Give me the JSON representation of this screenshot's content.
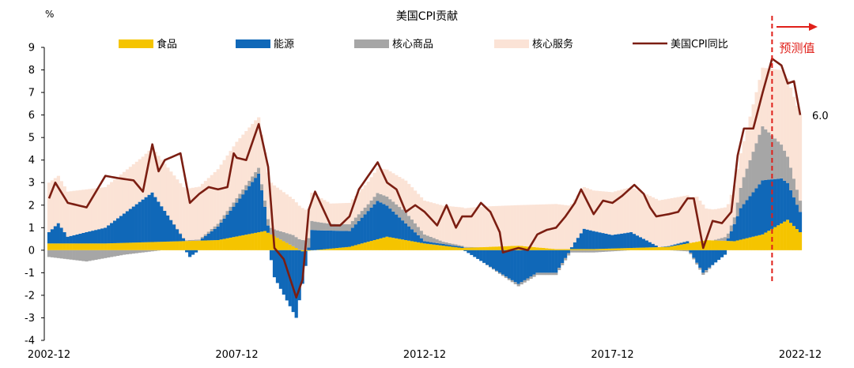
{
  "chart_data": {
    "type": "bar",
    "title": "美国CPI贡献",
    "ylabel": "%",
    "ylim": [
      -4,
      9
    ],
    "yticks": [
      -4,
      -3,
      -2,
      -1,
      0,
      1,
      2,
      3,
      4,
      5,
      6,
      7,
      8,
      9
    ],
    "x_tick_labels": [
      "2002-12",
      "2007-12",
      "2012-12",
      "2017-12",
      "2022-12"
    ],
    "x_start": "2002-12",
    "x_end": "2022-12",
    "legend_position": "top",
    "grid": false,
    "legend": [
      {
        "name": "食品",
        "kind": "bar",
        "color": "#f5c400"
      },
      {
        "name": "能源",
        "kind": "bar",
        "color": "#1068b8"
      },
      {
        "name": "核心商品",
        "kind": "bar",
        "color": "#a6a6a6"
      },
      {
        "name": "核心服务",
        "kind": "bar",
        "color": "#fbe3d6"
      },
      {
        "name": "美国CPI同比",
        "kind": "line",
        "color": "#7b1e12"
      }
    ],
    "anchors": {
      "food": [
        [
          "2002-12",
          0.3
        ],
        [
          "2004-06",
          0.3
        ],
        [
          "2007-06",
          0.45
        ],
        [
          "2008-09",
          0.85
        ],
        [
          "2009-09",
          -0.05
        ],
        [
          "2010-12",
          0.15
        ],
        [
          "2011-12",
          0.6
        ],
        [
          "2012-12",
          0.3
        ],
        [
          "2013-12",
          0.1
        ],
        [
          "2015-06",
          0.2
        ],
        [
          "2016-06",
          0.05
        ],
        [
          "2017-06",
          0.05
        ],
        [
          "2019-06",
          0.15
        ],
        [
          "2020-06",
          0.45
        ],
        [
          "2021-03",
          0.4
        ],
        [
          "2021-12",
          0.7
        ],
        [
          "2022-08",
          1.35
        ],
        [
          "2022-12",
          0.8
        ]
      ],
      "energy": [
        [
          "2002-12",
          0.5
        ],
        [
          "2003-03",
          0.9
        ],
        [
          "2003-06",
          0.3
        ],
        [
          "2004-06",
          0.7
        ],
        [
          "2005-09",
          2.2
        ],
        [
          "2006-09",
          -0.3
        ],
        [
          "2007-06",
          0.6
        ],
        [
          "2007-12",
          1.5
        ],
        [
          "2008-07",
          2.6
        ],
        [
          "2008-12",
          -1.2
        ],
        [
          "2009-07",
          -3.0
        ],
        [
          "2009-12",
          0.9
        ],
        [
          "2010-12",
          0.7
        ],
        [
          "2011-09",
          1.7
        ],
        [
          "2012-12",
          0.1
        ],
        [
          "2013-12",
          0.05
        ],
        [
          "2014-12",
          -1.0
        ],
        [
          "2015-06",
          -1.5
        ],
        [
          "2015-12",
          -1.0
        ],
        [
          "2016-06",
          -1.0
        ],
        [
          "2016-12",
          0.3
        ],
        [
          "2017-03",
          0.9
        ],
        [
          "2017-12",
          0.6
        ],
        [
          "2018-06",
          0.7
        ],
        [
          "2019-03",
          0.0
        ],
        [
          "2019-12",
          0.1
        ],
        [
          "2020-05",
          -1.0
        ],
        [
          "2020-12",
          -0.2
        ],
        [
          "2021-05",
          1.4
        ],
        [
          "2021-12",
          2.4
        ],
        [
          "2022-06",
          2.0
        ],
        [
          "2022-12",
          0.9
        ]
      ],
      "core_goods": [
        [
          "2002-12",
          -0.3
        ],
        [
          "2003-12",
          -0.5
        ],
        [
          "2004-12",
          -0.2
        ],
        [
          "2005-12",
          0.0
        ],
        [
          "2006-12",
          0.05
        ],
        [
          "2007-12",
          0.2
        ],
        [
          "2008-12",
          0.3
        ],
        [
          "2009-06",
          0.5
        ],
        [
          "2010-06",
          0.3
        ],
        [
          "2011-06",
          0.3
        ],
        [
          "2012-06",
          0.5
        ],
        [
          "2013-06",
          0.1
        ],
        [
          "2014-06",
          0.0
        ],
        [
          "2015-06",
          -0.1
        ],
        [
          "2016-06",
          -0.1
        ],
        [
          "2017-06",
          -0.1
        ],
        [
          "2018-06",
          0.0
        ],
        [
          "2019-06",
          0.0
        ],
        [
          "2020-06",
          -0.1
        ],
        [
          "2021-03",
          0.3
        ],
        [
          "2021-06",
          1.2
        ],
        [
          "2021-12",
          2.4
        ],
        [
          "2022-06",
          1.5
        ],
        [
          "2022-12",
          0.5
        ]
      ],
      "core_services": [
        [
          "2002-12",
          2.2
        ],
        [
          "2003-06",
          2.0
        ],
        [
          "2004-06",
          1.8
        ],
        [
          "2005-06",
          1.9
        ],
        [
          "2006-09",
          2.3
        ],
        [
          "2007-12",
          2.5
        ],
        [
          "2008-06",
          2.3
        ],
        [
          "2009-06",
          1.6
        ],
        [
          "2010-06",
          0.9
        ],
        [
          "2011-06",
          1.0
        ],
        [
          "2012-06",
          1.4
        ],
        [
          "2013-06",
          1.6
        ],
        [
          "2014-06",
          1.8
        ],
        [
          "2015-06",
          1.8
        ],
        [
          "2016-06",
          2.0
        ],
        [
          "2017-06",
          1.8
        ],
        [
          "2018-06",
          2.0
        ],
        [
          "2019-06",
          2.1
        ],
        [
          "2020-03",
          2.0
        ],
        [
          "2020-06",
          1.4
        ],
        [
          "2021-01",
          1.3
        ],
        [
          "2021-06",
          1.6
        ],
        [
          "2021-12",
          2.6
        ],
        [
          "2022-06",
          3.3
        ],
        [
          "2022-12",
          3.8
        ]
      ],
      "cpi_yoy": [
        [
          "2002-12",
          2.3
        ],
        [
          "2003-02",
          3.0
        ],
        [
          "2003-06",
          2.1
        ],
        [
          "2003-12",
          1.9
        ],
        [
          "2004-06",
          3.3
        ],
        [
          "2004-10",
          3.2
        ],
        [
          "2005-03",
          3.1
        ],
        [
          "2005-06",
          2.6
        ],
        [
          "2005-09",
          4.7
        ],
        [
          "2005-11",
          3.5
        ],
        [
          "2006-01",
          4.0
        ],
        [
          "2006-06",
          4.3
        ],
        [
          "2006-09",
          2.1
        ],
        [
          "2006-12",
          2.5
        ],
        [
          "2007-03",
          2.8
        ],
        [
          "2007-06",
          2.7
        ],
        [
          "2007-09",
          2.8
        ],
        [
          "2007-11",
          4.3
        ],
        [
          "2007-12",
          4.1
        ],
        [
          "2008-03",
          4.0
        ],
        [
          "2008-07",
          5.6
        ],
        [
          "2008-10",
          3.7
        ],
        [
          "2008-12",
          0.1
        ],
        [
          "2009-03",
          -0.4
        ],
        [
          "2009-07",
          -2.1
        ],
        [
          "2009-09",
          -1.3
        ],
        [
          "2009-11",
          1.8
        ],
        [
          "2010-01",
          2.6
        ],
        [
          "2010-06",
          1.1
        ],
        [
          "2010-09",
          1.1
        ],
        [
          "2010-12",
          1.5
        ],
        [
          "2011-03",
          2.7
        ],
        [
          "2011-09",
          3.9
        ],
        [
          "2011-12",
          3.0
        ],
        [
          "2012-03",
          2.7
        ],
        [
          "2012-06",
          1.7
        ],
        [
          "2012-09",
          2.0
        ],
        [
          "2012-12",
          1.7
        ],
        [
          "2013-04",
          1.1
        ],
        [
          "2013-07",
          2.0
        ],
        [
          "2013-10",
          1.0
        ],
        [
          "2013-12",
          1.5
        ],
        [
          "2014-03",
          1.5
        ],
        [
          "2014-06",
          2.1
        ],
        [
          "2014-09",
          1.7
        ],
        [
          "2014-12",
          0.8
        ],
        [
          "2015-01",
          -0.1
        ],
        [
          "2015-06",
          0.1
        ],
        [
          "2015-09",
          0.0
        ],
        [
          "2015-12",
          0.7
        ],
        [
          "2016-03",
          0.9
        ],
        [
          "2016-06",
          1.0
        ],
        [
          "2016-09",
          1.5
        ],
        [
          "2016-12",
          2.1
        ],
        [
          "2017-02",
          2.7
        ],
        [
          "2017-06",
          1.6
        ],
        [
          "2017-09",
          2.2
        ],
        [
          "2017-12",
          2.1
        ],
        [
          "2018-03",
          2.4
        ],
        [
          "2018-07",
          2.9
        ],
        [
          "2018-10",
          2.5
        ],
        [
          "2018-12",
          1.9
        ],
        [
          "2019-02",
          1.5
        ],
        [
          "2019-06",
          1.6
        ],
        [
          "2019-09",
          1.7
        ],
        [
          "2019-12",
          2.3
        ],
        [
          "2020-02",
          2.3
        ],
        [
          "2020-05",
          0.1
        ],
        [
          "2020-08",
          1.3
        ],
        [
          "2020-11",
          1.2
        ],
        [
          "2021-02",
          1.7
        ],
        [
          "2021-04",
          4.2
        ],
        [
          "2021-06",
          5.4
        ],
        [
          "2021-09",
          5.4
        ],
        [
          "2021-12",
          7.0
        ],
        [
          "2022-03",
          8.5
        ],
        [
          "2022-06",
          8.2
        ],
        [
          "2022-08",
          7.4
        ],
        [
          "2022-10",
          7.5
        ],
        [
          "2022-12",
          6.0
        ]
      ]
    }
  },
  "annotations": {
    "forecast_label": "预测值",
    "forecast_start": "2022-03",
    "end_value_label": "6.0"
  }
}
